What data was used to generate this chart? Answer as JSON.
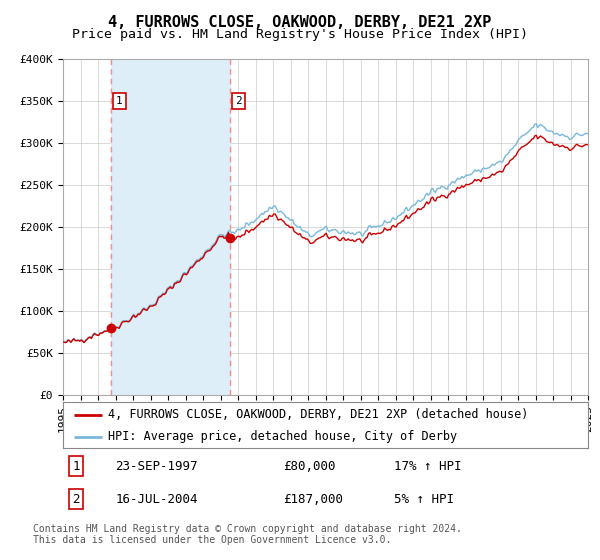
{
  "title": "4, FURROWS CLOSE, OAKWOOD, DERBY, DE21 2XP",
  "subtitle": "Price paid vs. HM Land Registry's House Price Index (HPI)",
  "background_color": "#ffffff",
  "plot_bg_color": "#ffffff",
  "grid_color": "#cccccc",
  "hpi_fill_color": "#ddeef8",
  "hpi_line_color": "#7ab8d9",
  "price_line_color": "#cc0000",
  "price_dot_color": "#cc0000",
  "vline_color": "#ff8888",
  "sale1_x": 1997.73,
  "sale1_y": 80000,
  "sale2_x": 2004.54,
  "sale2_y": 187000,
  "xmin": 1995,
  "xmax": 2025,
  "ymin": 0,
  "ymax": 400000,
  "yticks": [
    0,
    50000,
    100000,
    150000,
    200000,
    250000,
    300000,
    350000,
    400000
  ],
  "ytick_labels": [
    "£0",
    "£50K",
    "£100K",
    "£150K",
    "£200K",
    "£250K",
    "£300K",
    "£350K",
    "£400K"
  ],
  "legend_price_label": "4, FURROWS CLOSE, OAKWOOD, DERBY, DE21 2XP (detached house)",
  "legend_hpi_label": "HPI: Average price, detached house, City of Derby",
  "annot1_num": "1",
  "annot1_date": "23-SEP-1997",
  "annot1_price": "£80,000",
  "annot1_hpi": "17% ↑ HPI",
  "annot2_num": "2",
  "annot2_date": "16-JUL-2004",
  "annot2_price": "£187,000",
  "annot2_hpi": "5% ↑ HPI",
  "footer": "Contains HM Land Registry data © Crown copyright and database right 2024.\nThis data is licensed under the Open Government Licence v3.0.",
  "title_fontsize": 11,
  "subtitle_fontsize": 9.5,
  "tick_fontsize": 8,
  "legend_fontsize": 8.5,
  "annot_fontsize": 9,
  "footer_fontsize": 7
}
